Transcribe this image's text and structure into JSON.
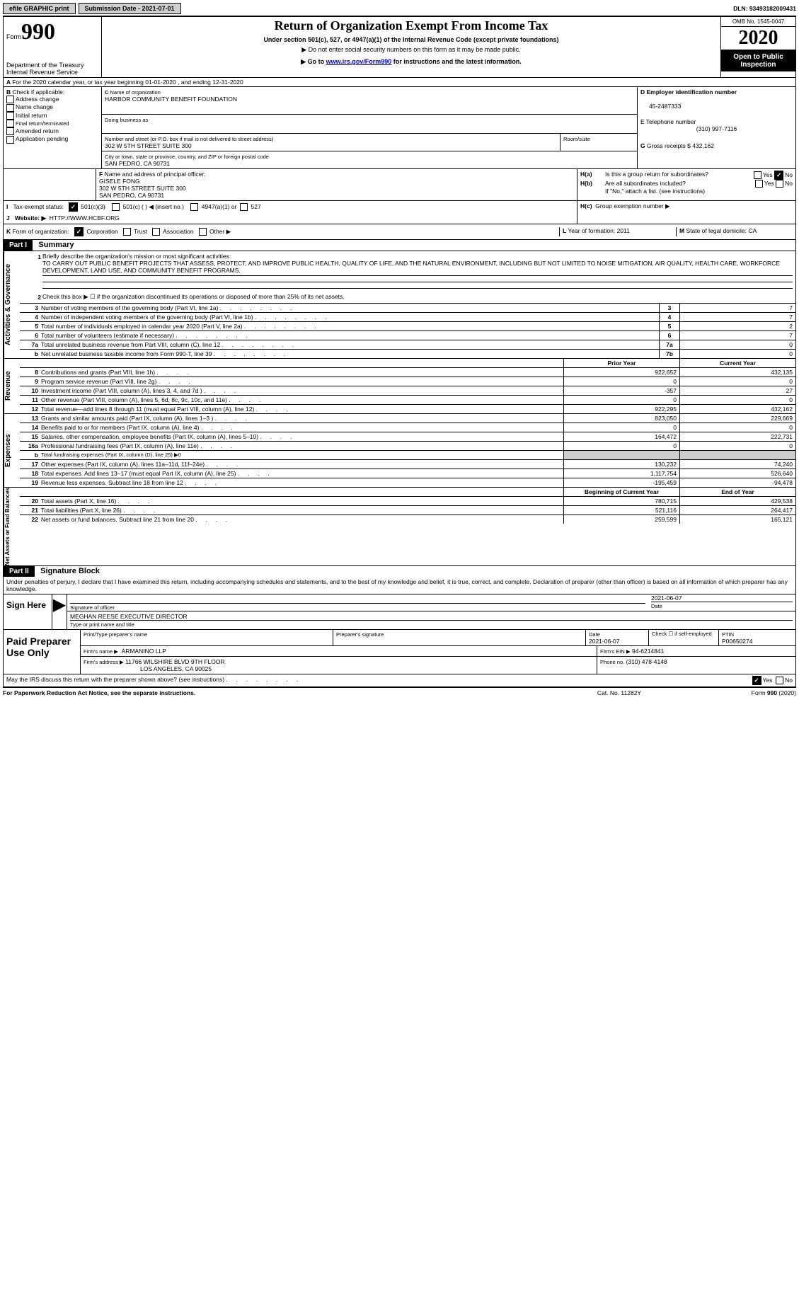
{
  "topbar": {
    "btn1": "efile GRAPHIC print",
    "btn2": "Submission Date - 2021-07-01",
    "dln": "DLN: 93493182009431"
  },
  "header": {
    "form_word": "Form",
    "form_num": "990",
    "dept": "Department of the Treasury\nInternal Revenue Service",
    "title": "Return of Organization Exempt From Income Tax",
    "sub1": "Under section 501(c), 527, or 4947(a)(1) of the Internal Revenue Code (except private foundations)",
    "sub2": "▶ Do not enter social security numbers on this form as it may be made public.",
    "sub3_pre": "▶ Go to ",
    "sub3_link": "www.irs.gov/Form990",
    "sub3_post": " for instructions and the latest information.",
    "omb": "OMB No. 1545-0047",
    "year": "2020",
    "open": "Open to Public Inspection"
  },
  "lineA": "For the 2020 calendar year, or tax year beginning 01-01-2020    , and ending 12-31-2020",
  "B": {
    "label": "Check if applicable:",
    "o1": "Address change",
    "o2": "Name change",
    "o3": "Initial return",
    "o4": "Final return/terminated",
    "o5": "Amended return",
    "o6": "Application pending"
  },
  "C": {
    "name_lbl": "Name of organization",
    "name": "HARBOR COMMUNITY BENEFIT FOUNDATION",
    "dba_lbl": "Doing business as",
    "addr_lbl": "Number and street (or P.O. box if mail is not delivered to street address)",
    "room_lbl": "Room/suite",
    "addr": "302 W 5TH STREET SUITE 300",
    "city_lbl": "City or town, state or province, country, and ZIP or foreign postal code",
    "city": "SAN PEDRO, CA  90731"
  },
  "D": {
    "lbl": "Employer identification number",
    "val": "45-2487333"
  },
  "E": {
    "lbl": "Telephone number",
    "val": "(310) 997-7116"
  },
  "G": {
    "lbl": "Gross receipts $",
    "val": "432,162"
  },
  "F": {
    "lbl": "Name and address of principal officer:",
    "name": "GISELE FONG",
    "addr1": "302 W 5TH STREET SUITE 300",
    "addr2": "SAN PEDRO, CA  90731"
  },
  "H": {
    "a": "Is this a group return for subordinates?",
    "b": "Are all subordinates included?",
    "note": "If \"No,\" attach a list. (see instructions)",
    "c": "Group exemption number ▶"
  },
  "I": {
    "lbl": "Tax-exempt status:",
    "o1": "501(c)(3)",
    "o2": "501(c) (  ) ◀ (insert no.)",
    "o3": "4947(a)(1) or",
    "o4": "527"
  },
  "J": {
    "lbl": "Website: ▶",
    "val": "HTTP://WWW.HCBF.ORG"
  },
  "K": {
    "lbl": "Form of organization:",
    "o1": "Corporation",
    "o2": "Trust",
    "o3": "Association",
    "o4": "Other ▶"
  },
  "L": {
    "lbl": "Year of formation:",
    "val": "2011"
  },
  "M": {
    "lbl": "State of legal domicile:",
    "val": "CA"
  },
  "part1": {
    "label": "Part I",
    "title": "Summary",
    "l1_lbl": "Briefly describe the organization's mission or most significant activities:",
    "l1_txt": "TO CARRY OUT PUBLIC BENEFIT PROJECTS THAT ASSESS, PROTECT, AND IMPROVE PUBLIC HEALTH, QUALITY OF LIFE, AND THE NATURAL ENVIRONMENT, INCLUDING BUT NOT LIMITED TO NOISE MITIGATION, AIR QUALITY, HEALTH CARE, WORKFORCE DEVELOPMENT, LAND USE, AND COMMUNITY BENEFIT PROGRAMS.",
    "l2": "Check this box ▶ ☐  if the organization discontinued its operations or disposed of more than 25% of its net assets.",
    "r": [
      [
        "3",
        "Number of voting members of the governing body (Part VI, line 1a)",
        "3",
        "7"
      ],
      [
        "4",
        "Number of independent voting members of the governing body (Part VI, line 1b)",
        "4",
        "7"
      ],
      [
        "5",
        "Total number of individuals employed in calendar year 2020 (Part V, line 2a)",
        "5",
        "2"
      ],
      [
        "6",
        "Total number of volunteers (estimate if necessary)",
        "6",
        "7"
      ],
      [
        "7a",
        "Total unrelated business revenue from Part VIII, column (C), line 12",
        "7a",
        "0"
      ],
      [
        "b",
        "Net unrelated business taxable income from Form 990-T, line 39",
        "7b",
        "0"
      ]
    ],
    "hdr_prior": "Prior Year",
    "hdr_curr": "Current Year",
    "rev": [
      [
        "8",
        "Contributions and grants (Part VIII, line 1h)",
        "922,652",
        "432,135"
      ],
      [
        "9",
        "Program service revenue (Part VIII, line 2g)",
        "0",
        "0"
      ],
      [
        "10",
        "Investment income (Part VIII, column (A), lines 3, 4, and 7d )",
        "-357",
        "27"
      ],
      [
        "11",
        "Other revenue (Part VIII, column (A), lines 5, 6d, 8c, 9c, 10c, and 11e)",
        "0",
        "0"
      ],
      [
        "12",
        "Total revenue—add lines 8 through 11 (must equal Part VIII, column (A), line 12)",
        "922,295",
        "432,162"
      ]
    ],
    "exp": [
      [
        "13",
        "Grants and similar amounts paid (Part IX, column (A), lines 1–3 )",
        "823,050",
        "229,669"
      ],
      [
        "14",
        "Benefits paid to or for members (Part IX, column (A), line 4)",
        "0",
        "0"
      ],
      [
        "15",
        "Salaries, other compensation, employee benefits (Part IX, column (A), lines 5–10)",
        "164,472",
        "222,731"
      ],
      [
        "16a",
        "Professional fundraising fees (Part IX, column (A), line 11e)",
        "0",
        "0"
      ]
    ],
    "l16b": "Total fundraising expenses (Part IX, column (D), line 25) ▶0",
    "exp2": [
      [
        "17",
        "Other expenses (Part IX, column (A), lines 11a–11d, 11f–24e)",
        "130,232",
        "74,240"
      ],
      [
        "18",
        "Total expenses. Add lines 13–17 (must equal Part IX, column (A), line 25)",
        "1,117,754",
        "526,640"
      ],
      [
        "19",
        "Revenue less expenses. Subtract line 18 from line 12",
        "-195,459",
        "-94,478"
      ]
    ],
    "hdr_beg": "Beginning of Current Year",
    "hdr_end": "End of Year",
    "net": [
      [
        "20",
        "Total assets (Part X, line 16)",
        "780,715",
        "429,538"
      ],
      [
        "21",
        "Total liabilities (Part X, line 26)",
        "521,116",
        "264,417"
      ],
      [
        "22",
        "Net assets or fund balances. Subtract line 21 from line 20",
        "259,599",
        "165,121"
      ]
    ],
    "side_ag": "Activities & Governance",
    "side_rev": "Revenue",
    "side_exp": "Expenses",
    "side_net": "Net Assets or Fund Balances"
  },
  "part2": {
    "label": "Part II",
    "title": "Signature Block",
    "perjury": "Under penalties of perjury, I declare that I have examined this return, including accompanying schedules and statements, and to the best of my knowledge and belief, it is true, correct, and complete. Declaration of preparer (other than officer) is based on all information of which preparer has any knowledge."
  },
  "sign": {
    "here": "Sign Here",
    "sig_lbl": "Signature of officer",
    "date_lbl": "Date",
    "date": "2021-06-07",
    "name": "MEGHAN REESE  EXECUTIVE DIRECTOR",
    "type_lbl": "Type or print name and title"
  },
  "prep": {
    "here": "Paid Preparer Use Only",
    "c1": "Print/Type preparer's name",
    "c2": "Preparer's signature",
    "c3_lbl": "Date",
    "c3": "2021-06-07",
    "c4": "Check ☐ if self-employed",
    "c5_lbl": "PTIN",
    "c5": "P00650274",
    "firm_lbl": "Firm's name     ▶",
    "firm": "ARMANINO LLP",
    "ein_lbl": "Firm's EIN ▶",
    "ein": "94-6214841",
    "addr_lbl": "Firm's address ▶",
    "addr1": "11766 WILSHIRE BLVD 9TH FLOOR",
    "addr2": "LOS ANGELES, CA  90025",
    "phone_lbl": "Phone no.",
    "phone": "(310) 478-4148"
  },
  "footer": {
    "q": "May the IRS discuss this return with the preparer shown above? (see instructions)",
    "pra": "For Paperwork Reduction Act Notice, see the separate instructions.",
    "cat": "Cat. No. 11282Y",
    "form": "Form 990 (2020)"
  },
  "yes": "Yes",
  "no": "No"
}
